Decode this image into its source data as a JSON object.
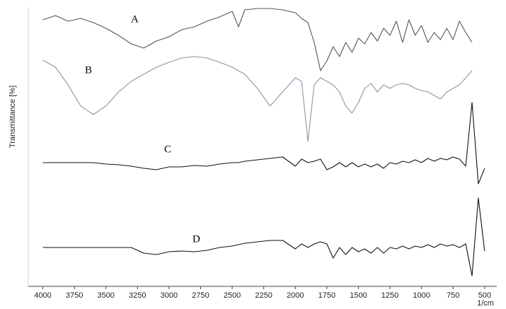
{
  "chart_data": {
    "type": "line",
    "y_label": "Transmittance [%]",
    "x_label": "1/cm",
    "x": [
      4000,
      3900,
      3800,
      3700,
      3600,
      3500,
      3400,
      3300,
      3200,
      3100,
      3000,
      2900,
      2800,
      2700,
      2600,
      2500,
      2450,
      2400,
      2300,
      2200,
      2100,
      2000,
      1950,
      1900,
      1850,
      1800,
      1750,
      1700,
      1650,
      1600,
      1550,
      1500,
      1450,
      1400,
      1350,
      1300,
      1250,
      1200,
      1150,
      1100,
      1050,
      1000,
      950,
      900,
      850,
      800,
      750,
      700,
      650,
      600,
      550,
      500
    ],
    "xlim": [
      4115,
      415
    ],
    "xticks": [
      4000,
      3750,
      3500,
      3250,
      3000,
      2750,
      2500,
      2250,
      2000,
      1750,
      1500,
      1250,
      1000,
      750,
      500
    ],
    "ylim": [
      0,
      100
    ],
    "series": [
      {
        "name": "A",
        "color": "#555555",
        "values": [
          95.5,
          97,
          95,
          96,
          94.5,
          92.5,
          90,
          87,
          85.5,
          88,
          89.5,
          92,
          93,
          95,
          96.5,
          98.5,
          93,
          99,
          99.5,
          99.5,
          99,
          98,
          96,
          94.5,
          87.5,
          77.5,
          81,
          86,
          82.5,
          87.5,
          84,
          89,
          87,
          91,
          88,
          92.5,
          90,
          95,
          87.5,
          95.5,
          90,
          93.5,
          87.5,
          91,
          88.5,
          92.5,
          88.5,
          95,
          91,
          87.5,
          null,
          null
        ]
      },
      {
        "name": "B",
        "color": "#8a96a8",
        "values": [
          81.25,
          78.75,
          72.5,
          65,
          62,
          65,
          70,
          73.75,
          76.25,
          78.75,
          80.5,
          82,
          82.5,
          82,
          80.5,
          78.75,
          77.5,
          76.25,
          71.25,
          65,
          70,
          75,
          73.75,
          52.5,
          72.5,
          75,
          73.75,
          72.5,
          70,
          65,
          62.5,
          66.25,
          71.25,
          73,
          70,
          72.5,
          71.25,
          72.5,
          73,
          72.5,
          71.25,
          70.5,
          70,
          68.75,
          67.5,
          70,
          71.25,
          72.5,
          75,
          77.5,
          null,
          null
        ]
      },
      {
        "name": "C",
        "color": "#111111",
        "values": [
          45,
          45,
          45,
          45,
          45,
          44.5,
          44.25,
          43.75,
          43,
          42.5,
          43.5,
          43.5,
          44,
          43.75,
          44.5,
          45,
          45,
          45.5,
          46,
          46.5,
          47,
          43.75,
          46.25,
          45,
          45.5,
          46.25,
          42.5,
          43.5,
          45,
          43.5,
          45,
          43.5,
          44.5,
          43.5,
          44.5,
          43,
          45,
          44.5,
          45.5,
          45,
          46,
          45,
          46.5,
          45.5,
          46.5,
          46,
          47,
          46.25,
          43.75,
          66.25,
          37.5,
          43
        ]
      },
      {
        "name": "D",
        "color": "#111111",
        "values": [
          15,
          15,
          15,
          15,
          15,
          15,
          15,
          15,
          13,
          12.5,
          13.5,
          13.75,
          13.5,
          14,
          15,
          15.5,
          16,
          16.5,
          17,
          17.5,
          17.5,
          14.5,
          16.25,
          15,
          16.25,
          17,
          16.25,
          11.25,
          15,
          12.5,
          15,
          13.5,
          14.5,
          13,
          15,
          13,
          15,
          14.5,
          15.5,
          14.5,
          15.5,
          15,
          16,
          15,
          16.25,
          15.5,
          16,
          15,
          16.25,
          5,
          32.5,
          13.75
        ]
      }
    ]
  }
}
